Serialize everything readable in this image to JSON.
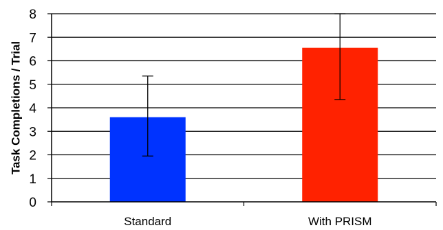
{
  "chart_data": {
    "type": "bar",
    "title": "",
    "xlabel": "",
    "ylabel": "Task Completions / Trial",
    "ylim": [
      0,
      8
    ],
    "yticks": [
      0,
      1,
      2,
      3,
      4,
      5,
      6,
      7,
      8
    ],
    "grid": true,
    "legend": "none",
    "categories": [
      "Standard",
      "With PRISM"
    ],
    "values": [
      3.6,
      6.55
    ],
    "error_low": [
      1.95,
      4.35
    ],
    "error_high": [
      5.35,
      8.0
    ],
    "colors": [
      "#0033ff",
      "#ff2200"
    ]
  }
}
